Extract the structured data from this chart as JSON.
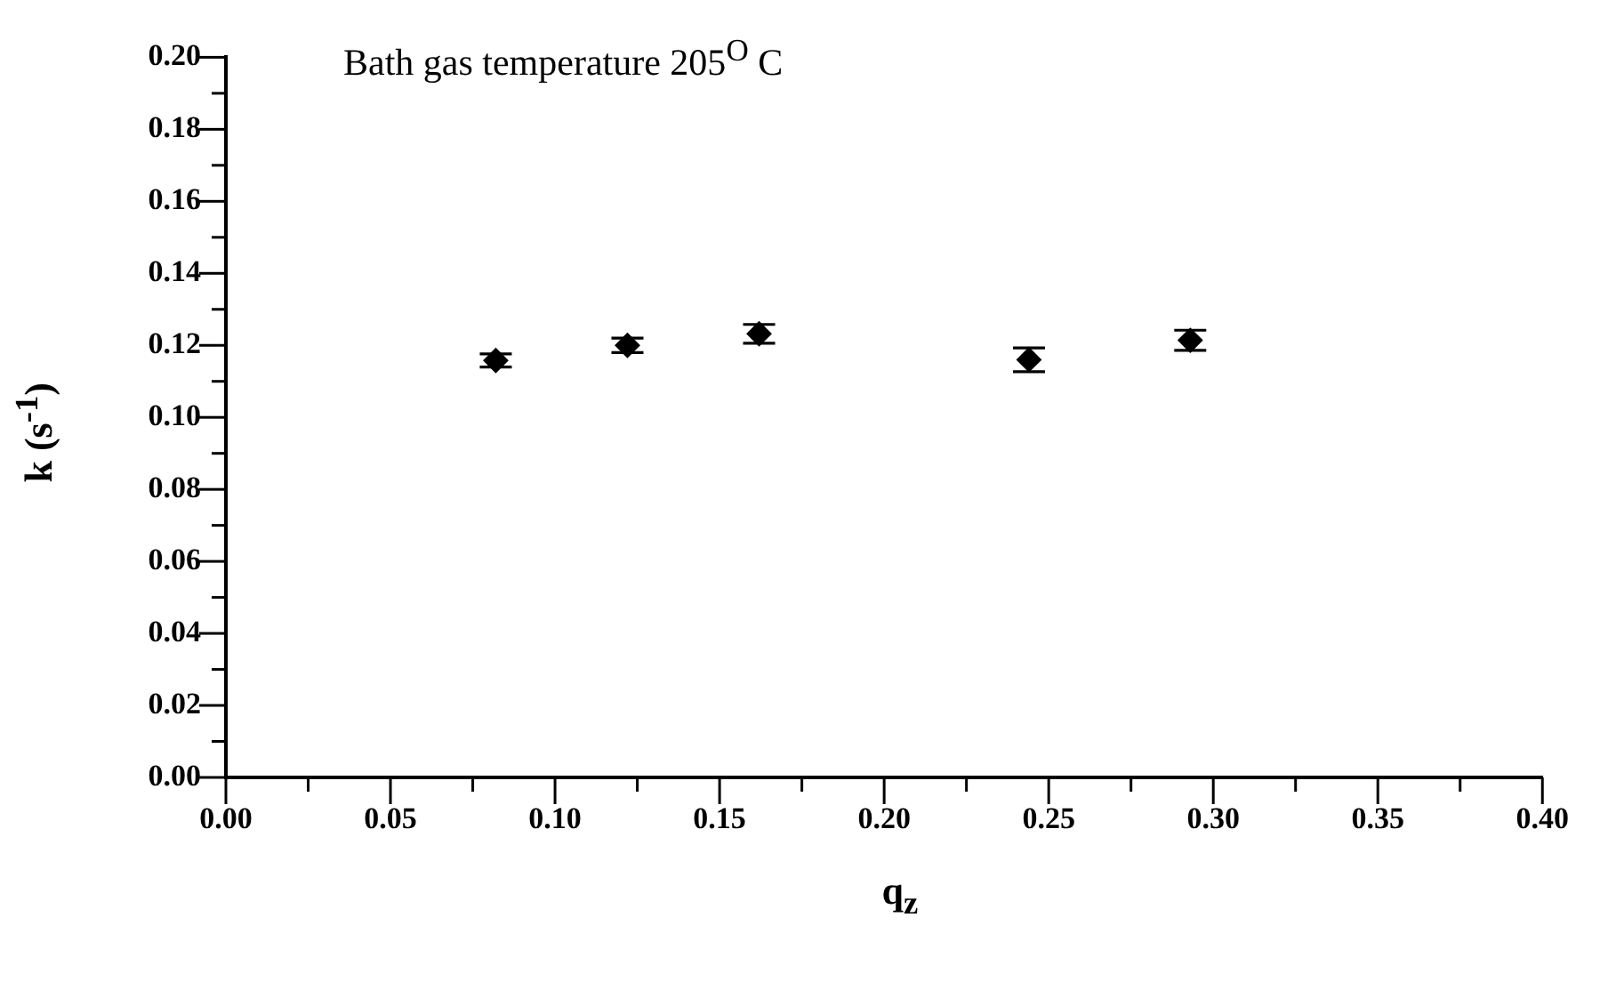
{
  "chart_data": {
    "type": "scatter",
    "xlabel": "q$_{z}$",
    "ylabel": "k (s$^{-1}$)",
    "annotations": [
      "Bath gas temperature 205$^{O}$ C"
    ],
    "x": [
      0.082,
      0.122,
      0.162,
      0.244,
      0.293
    ],
    "values": [
      0.1158,
      0.12,
      0.1232,
      0.116,
      0.1214
    ],
    "errors": [
      0.0018,
      0.002,
      0.0026,
      0.0033,
      0.0028
    ],
    "color": "#000000",
    "marker": "diamond",
    "grid": false,
    "xlim": [
      0,
      0.4
    ],
    "xticks": [
      {
        "value": 0,
        "label": "0.00"
      },
      {
        "value": 0.025,
        "label": null
      },
      {
        "value": 0.05,
        "label": "0.05"
      },
      {
        "value": 0.075,
        "label": null
      },
      {
        "value": 0.1,
        "label": "0.10"
      },
      {
        "value": 0.125,
        "label": null
      },
      {
        "value": 0.15,
        "label": "0.15"
      },
      {
        "value": 0.175,
        "label": null
      },
      {
        "value": 0.2,
        "label": "0.20"
      },
      {
        "value": 0.225,
        "label": null
      },
      {
        "value": 0.25,
        "label": "0.25"
      },
      {
        "value": 0.275,
        "label": null
      },
      {
        "value": 0.3,
        "label": "0.30"
      },
      {
        "value": 0.325,
        "label": null
      },
      {
        "value": 0.35,
        "label": "0.35"
      },
      {
        "value": 0.375,
        "label": null
      },
      {
        "value": 0.4,
        "label": "0.40"
      }
    ],
    "ylim": [
      0,
      0.2
    ],
    "yticks": [
      {
        "value": 0,
        "label": "0.00"
      },
      {
        "value": 0.01,
        "label": null
      },
      {
        "value": 0.02,
        "label": "0.02"
      },
      {
        "value": 0.03,
        "label": null
      },
      {
        "value": 0.04,
        "label": "0.04"
      },
      {
        "value": 0.05,
        "label": null
      },
      {
        "value": 0.06,
        "label": "0.06"
      },
      {
        "value": 0.07,
        "label": null
      },
      {
        "value": 0.08,
        "label": "0.08"
      },
      {
        "value": 0.09,
        "label": null
      },
      {
        "value": 0.1,
        "label": "0.10"
      },
      {
        "value": 0.11,
        "label": null
      },
      {
        "value": 0.12,
        "label": "0.12"
      },
      {
        "value": 0.13,
        "label": null
      },
      {
        "value": 0.14,
        "label": "0.14"
      },
      {
        "value": 0.15,
        "label": null
      },
      {
        "value": 0.16,
        "label": "0.16"
      },
      {
        "value": 0.17,
        "label": null
      },
      {
        "value": 0.18,
        "label": "0.18"
      },
      {
        "value": 0.19,
        "label": null
      },
      {
        "value": 0.2,
        "label": "0.20"
      }
    ]
  }
}
